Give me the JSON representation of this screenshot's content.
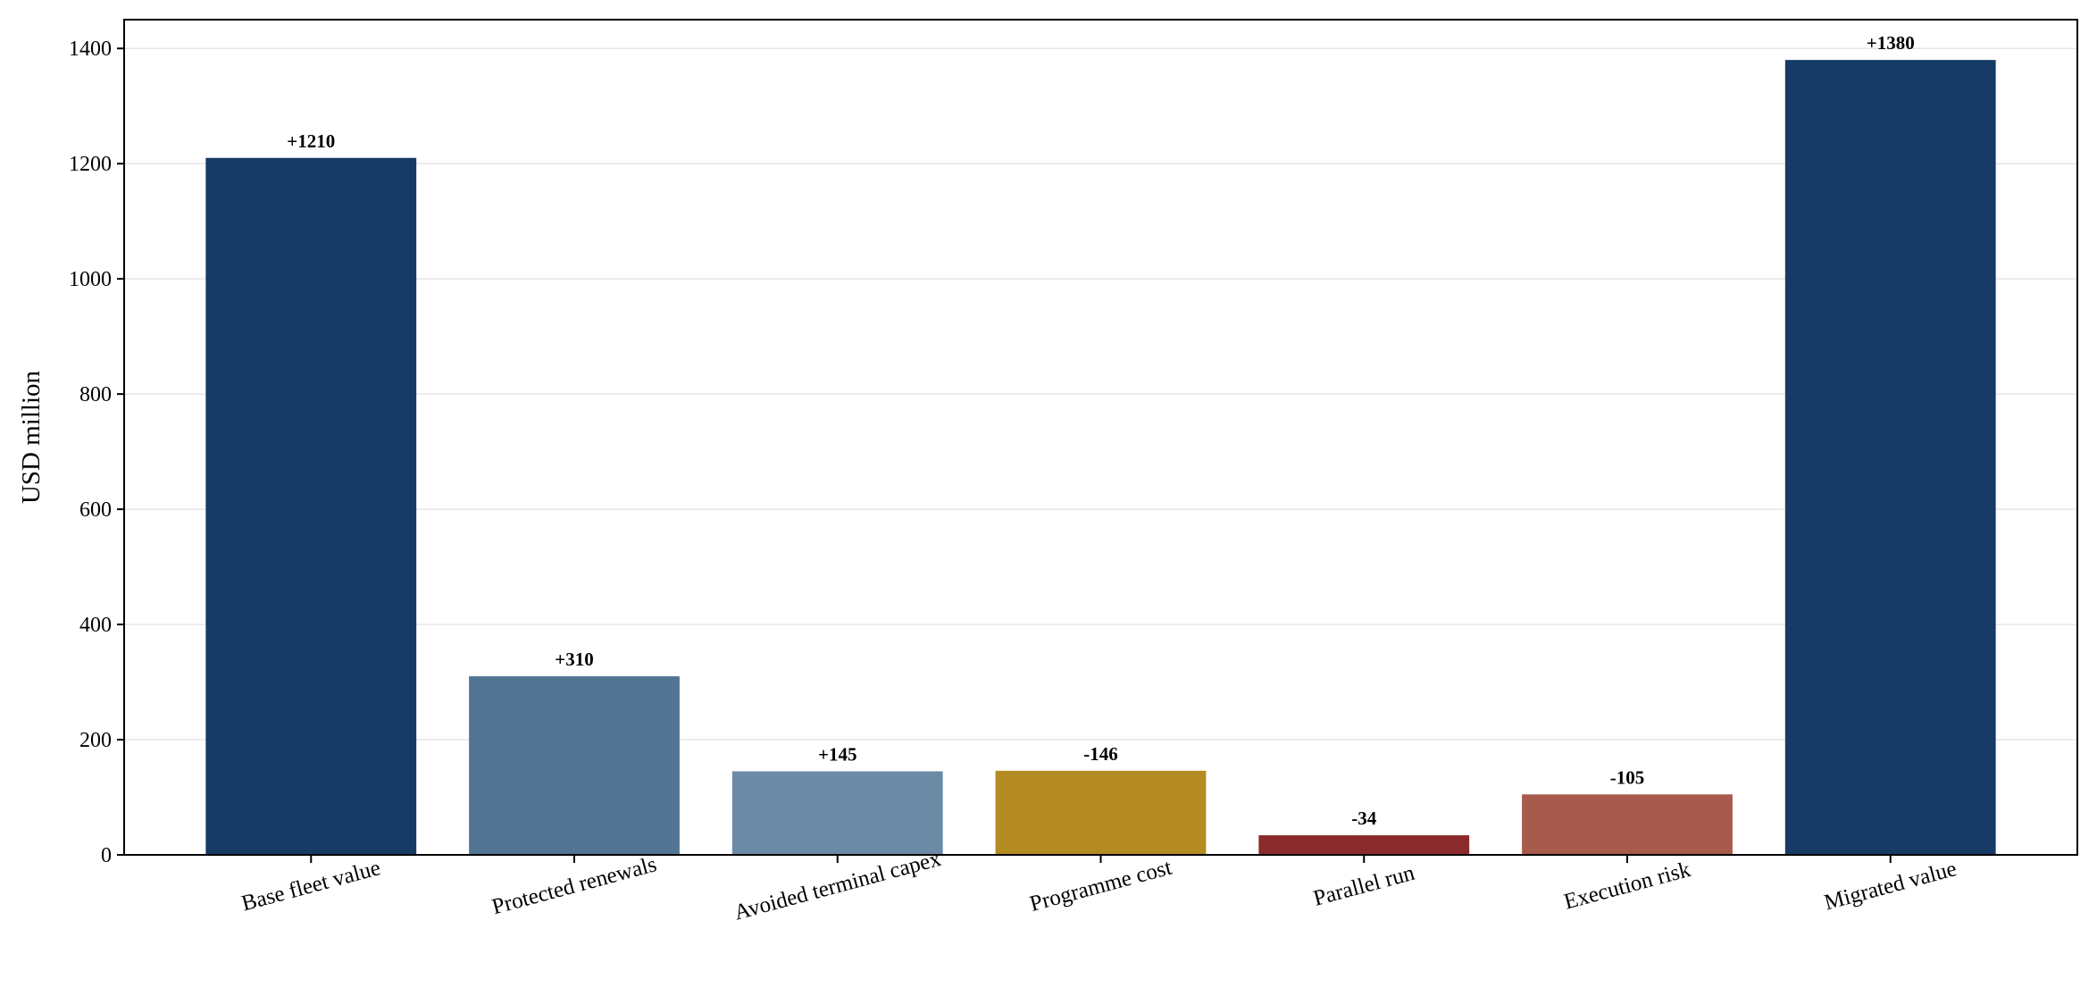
{
  "chart_data": {
    "type": "bar",
    "categories": [
      "Base fleet value",
      "Protected renewals",
      "Avoided terminal capex",
      "Programme cost",
      "Parallel run",
      "Execution risk",
      "Migrated value"
    ],
    "values": [
      1210,
      310,
      145,
      146,
      34,
      105,
      1380
    ],
    "data_labels": [
      "+1210",
      "+310",
      "+145",
      "-146",
      "-34",
      "-105",
      "+1380"
    ],
    "colors": [
      "#163b66",
      "#527594",
      "#6b8aa6",
      "#b38b22",
      "#8b2a2a",
      "#a85a4c",
      "#163b66"
    ],
    "ylabel": "USD million",
    "xlabel": "",
    "title": "",
    "ylim": [
      0,
      1450
    ],
    "yticks": [
      0,
      200,
      400,
      600,
      800,
      1000,
      1200,
      1400
    ],
    "grid": true
  }
}
